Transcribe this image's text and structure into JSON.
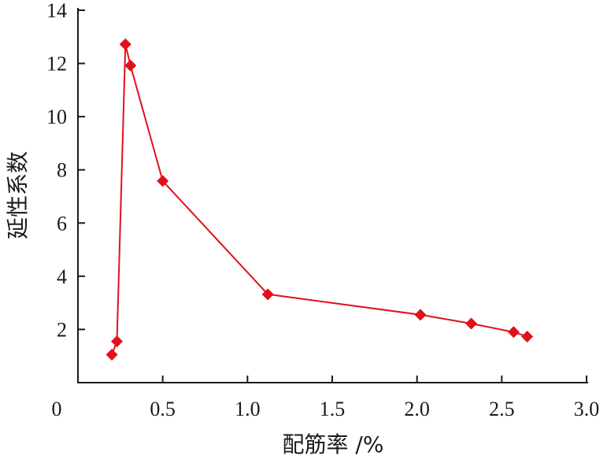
{
  "chart_data": {
    "type": "line",
    "title": "",
    "xlabel": "配筋率 /%",
    "ylabel": "延性系数",
    "xlim": [
      0,
      3.0
    ],
    "ylim": [
      0,
      14
    ],
    "x_ticks": [
      0,
      0.5,
      1.0,
      1.5,
      2.0,
      2.5,
      3.0
    ],
    "x_tick_labels": [
      "0",
      "0.5",
      "1.0",
      "1.5",
      "2.0",
      "2.5",
      "3.0"
    ],
    "y_ticks": [
      2,
      4,
      6,
      8,
      10,
      12,
      14
    ],
    "y_tick_labels": [
      "2",
      "4",
      "6",
      "8",
      "10",
      "12",
      "14"
    ],
    "grid": false,
    "legend": "none",
    "series": [
      {
        "color": "#e0101c",
        "marker": "diamond",
        "points": [
          {
            "x": 0.2,
            "y": 1.05
          },
          {
            "x": 0.23,
            "y": 1.55
          },
          {
            "x": 0.28,
            "y": 12.72
          },
          {
            "x": 0.31,
            "y": 11.92
          },
          {
            "x": 0.5,
            "y": 7.58
          },
          {
            "x": 1.12,
            "y": 3.32
          },
          {
            "x": 2.02,
            "y": 2.55
          },
          {
            "x": 2.32,
            "y": 2.22
          },
          {
            "x": 2.57,
            "y": 1.9
          },
          {
            "x": 2.65,
            "y": 1.73
          }
        ]
      }
    ]
  }
}
